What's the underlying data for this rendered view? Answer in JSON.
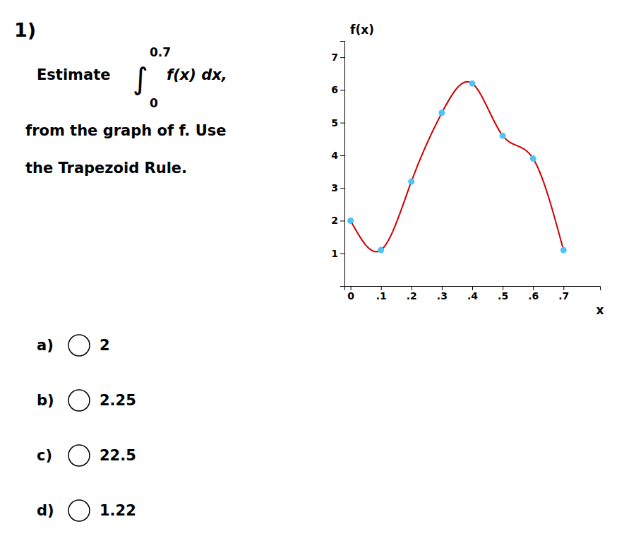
{
  "chart_data": {
    "type": "line",
    "title": "1)",
    "annotations": [
      "Estimate",
      "0.7",
      "∫",
      "0",
      "f(x) dx,",
      "from the graph of f. Use",
      "the Trapezoid Rule.",
      "a)",
      "2",
      "b)",
      "2.25",
      "c)",
      "22.5",
      "d)",
      "1.22"
    ],
    "xlabel": "x",
    "ylabel": "f(x)",
    "x": [
      0.0,
      0.1,
      0.2,
      0.3,
      0.4,
      0.5,
      0.6,
      0.7
    ],
    "series": [
      {
        "type": "line",
        "color": "#cc0000",
        "values": [
          2.0,
          1.1,
          3.2,
          5.3,
          6.2,
          4.6,
          3.9,
          1.1
        ]
      },
      {
        "type": "scatter",
        "color": "#4fc3f7",
        "marker": "circle",
        "values": [
          2.0,
          1.1,
          3.2,
          5.3,
          6.2,
          4.6,
          3.9,
          1.1
        ]
      }
    ],
    "xlim": [
      -0.02,
      0.82
    ],
    "xticks": [
      0,
      {
        "value": 0.1,
        "label": ".1"
      },
      {
        "value": 0.2,
        "label": ".2"
      },
      {
        "value": 0.3,
        "label": ".3"
      },
      {
        "value": 0.4,
        "label": ".4"
      },
      {
        "value": 0.5,
        "label": ".5"
      },
      {
        "value": 0.6,
        "label": ".6"
      },
      {
        "value": 0.7,
        "label": ".7"
      }
    ],
    "ylim": [
      0,
      7.5
    ],
    "yticks": [
      1,
      2,
      3,
      4,
      5,
      6,
      7
    ],
    "grid": false
  }
}
